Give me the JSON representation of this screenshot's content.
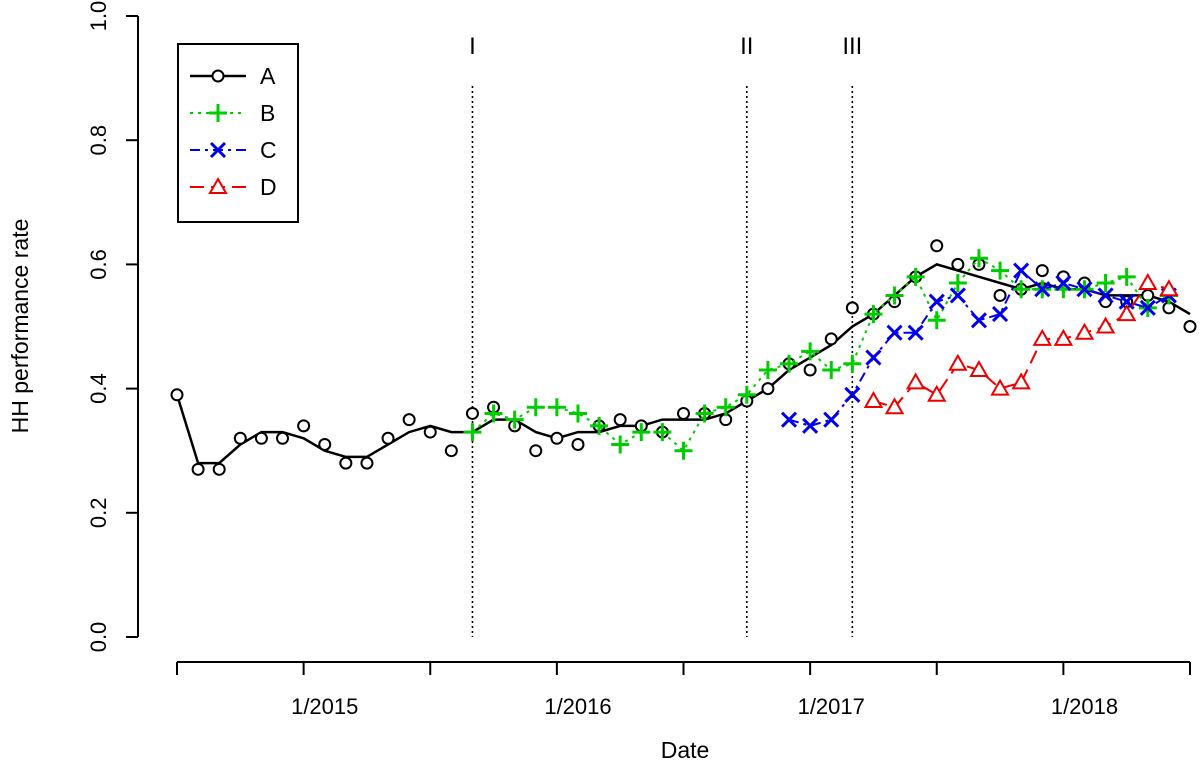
{
  "chart_data": {
    "type": "line",
    "title": "",
    "xlabel": "Date",
    "ylabel": "HH performance rate",
    "ylim": [
      0,
      1
    ],
    "yticks": [
      "0.0",
      "0.2",
      "0.4",
      "0.6",
      "0.8",
      "1.0"
    ],
    "xticks": [
      "1/2015",
      "1/2016",
      "1/2017",
      "1/2018"
    ],
    "xlim": [
      "2014-06",
      "2018-06"
    ],
    "grid": false,
    "legend_position": "top-left",
    "vertical_lines": [
      {
        "label": "I",
        "x": "2015-08"
      },
      {
        "label": "II",
        "x": "2016-09"
      },
      {
        "label": "III",
        "x": "2017-02"
      }
    ],
    "series": [
      {
        "name": "A",
        "color": "#000000",
        "marker": "circle",
        "line": "solid",
        "points": [
          [
            "2014-06",
            0.39
          ],
          [
            "2014-07",
            0.27
          ],
          [
            "2014-08",
            0.27
          ],
          [
            "2014-09",
            0.32
          ],
          [
            "2014-10",
            0.32
          ],
          [
            "2014-11",
            0.32
          ],
          [
            "2014-12",
            0.34
          ],
          [
            "2015-01",
            0.31
          ],
          [
            "2015-02",
            0.28
          ],
          [
            "2015-03",
            0.28
          ],
          [
            "2015-04",
            0.32
          ],
          [
            "2015-05",
            0.35
          ],
          [
            "2015-06",
            0.33
          ],
          [
            "2015-07",
            0.3
          ],
          [
            "2015-08",
            0.36
          ],
          [
            "2015-09",
            0.37
          ],
          [
            "2015-10",
            0.34
          ],
          [
            "2015-11",
            0.3
          ],
          [
            "2015-12",
            0.32
          ],
          [
            "2016-01",
            0.31
          ],
          [
            "2016-02",
            0.34
          ],
          [
            "2016-03",
            0.35
          ],
          [
            "2016-04",
            0.34
          ],
          [
            "2016-05",
            0.33
          ],
          [
            "2016-06",
            0.36
          ],
          [
            "2016-07",
            0.36
          ],
          [
            "2016-08",
            0.35
          ],
          [
            "2016-09",
            0.38
          ],
          [
            "2016-10",
            0.4
          ],
          [
            "2016-11",
            0.44
          ],
          [
            "2016-12",
            0.43
          ],
          [
            "2017-01",
            0.48
          ],
          [
            "2017-02",
            0.53
          ],
          [
            "2017-03",
            0.52
          ],
          [
            "2017-04",
            0.54
          ],
          [
            "2017-05",
            0.58
          ],
          [
            "2017-06",
            0.63
          ],
          [
            "2017-07",
            0.6
          ],
          [
            "2017-08",
            0.6
          ],
          [
            "2017-09",
            0.55
          ],
          [
            "2017-10",
            0.56
          ],
          [
            "2017-11",
            0.59
          ],
          [
            "2017-12",
            0.58
          ],
          [
            "2018-01",
            0.57
          ],
          [
            "2018-02",
            0.54
          ],
          [
            "2018-03",
            0.54
          ],
          [
            "2018-04",
            0.55
          ],
          [
            "2018-05",
            0.53
          ],
          [
            "2018-06",
            0.5
          ]
        ],
        "smooth": [
          [
            "2014-06",
            0.39
          ],
          [
            "2014-07",
            0.28
          ],
          [
            "2014-08",
            0.28
          ],
          [
            "2014-09",
            0.31
          ],
          [
            "2014-10",
            0.33
          ],
          [
            "2014-11",
            0.33
          ],
          [
            "2014-12",
            0.32
          ],
          [
            "2015-01",
            0.3
          ],
          [
            "2015-02",
            0.29
          ],
          [
            "2015-03",
            0.29
          ],
          [
            "2015-04",
            0.31
          ],
          [
            "2015-05",
            0.33
          ],
          [
            "2015-06",
            0.34
          ],
          [
            "2015-07",
            0.33
          ],
          [
            "2015-08",
            0.33
          ],
          [
            "2015-09",
            0.35
          ],
          [
            "2015-10",
            0.35
          ],
          [
            "2015-11",
            0.33
          ],
          [
            "2015-12",
            0.32
          ],
          [
            "2016-01",
            0.33
          ],
          [
            "2016-02",
            0.33
          ],
          [
            "2016-03",
            0.34
          ],
          [
            "2016-04",
            0.34
          ],
          [
            "2016-05",
            0.35
          ],
          [
            "2016-06",
            0.35
          ],
          [
            "2016-07",
            0.35
          ],
          [
            "2016-08",
            0.36
          ],
          [
            "2016-09",
            0.38
          ],
          [
            "2016-10",
            0.4
          ],
          [
            "2016-11",
            0.43
          ],
          [
            "2016-12",
            0.45
          ],
          [
            "2017-01",
            0.47
          ],
          [
            "2017-02",
            0.5
          ],
          [
            "2017-03",
            0.52
          ],
          [
            "2017-04",
            0.55
          ],
          [
            "2017-05",
            0.58
          ],
          [
            "2017-06",
            0.6
          ],
          [
            "2017-07",
            0.59
          ],
          [
            "2017-08",
            0.58
          ],
          [
            "2017-09",
            0.57
          ],
          [
            "2017-10",
            0.56
          ],
          [
            "2017-11",
            0.57
          ],
          [
            "2017-12",
            0.56
          ],
          [
            "2018-01",
            0.56
          ],
          [
            "2018-02",
            0.55
          ],
          [
            "2018-03",
            0.55
          ],
          [
            "2018-04",
            0.55
          ],
          [
            "2018-05",
            0.54
          ],
          [
            "2018-06",
            0.52
          ]
        ]
      },
      {
        "name": "B",
        "color": "#00cc00",
        "marker": "plus",
        "line": "dotted",
        "points": [
          [
            "2015-08",
            0.33
          ],
          [
            "2015-09",
            0.36
          ],
          [
            "2015-10",
            0.35
          ],
          [
            "2015-11",
            0.37
          ],
          [
            "2015-12",
            0.37
          ],
          [
            "2016-01",
            0.36
          ],
          [
            "2016-02",
            0.34
          ],
          [
            "2016-03",
            0.31
          ],
          [
            "2016-04",
            0.33
          ],
          [
            "2016-05",
            0.33
          ],
          [
            "2016-06",
            0.3
          ],
          [
            "2016-07",
            0.36
          ],
          [
            "2016-08",
            0.37
          ],
          [
            "2016-09",
            0.39
          ],
          [
            "2016-10",
            0.43
          ],
          [
            "2016-11",
            0.44
          ],
          [
            "2016-12",
            0.46
          ],
          [
            "2017-01",
            0.43
          ],
          [
            "2017-02",
            0.44
          ],
          [
            "2017-03",
            0.52
          ],
          [
            "2017-04",
            0.55
          ],
          [
            "2017-05",
            0.58
          ],
          [
            "2017-06",
            0.51
          ],
          [
            "2017-07",
            0.57
          ],
          [
            "2017-08",
            0.61
          ],
          [
            "2017-09",
            0.59
          ],
          [
            "2017-10",
            0.56
          ],
          [
            "2017-11",
            0.56
          ],
          [
            "2017-12",
            0.56
          ],
          [
            "2018-01",
            0.56
          ],
          [
            "2018-02",
            0.57
          ],
          [
            "2018-03",
            0.58
          ],
          [
            "2018-04",
            0.53
          ],
          [
            "2018-05",
            0.55
          ]
        ]
      },
      {
        "name": "C",
        "color": "#0000ee",
        "marker": "x",
        "line": "dashdot",
        "points": [
          [
            "2016-11",
            0.35
          ],
          [
            "2016-12",
            0.34
          ],
          [
            "2017-01",
            0.35
          ],
          [
            "2017-02",
            0.39
          ],
          [
            "2017-03",
            0.45
          ],
          [
            "2017-04",
            0.49
          ],
          [
            "2017-05",
            0.49
          ],
          [
            "2017-06",
            0.54
          ],
          [
            "2017-07",
            0.55
          ],
          [
            "2017-08",
            0.51
          ],
          [
            "2017-09",
            0.52
          ],
          [
            "2017-10",
            0.59
          ],
          [
            "2017-11",
            0.56
          ],
          [
            "2017-12",
            0.57
          ],
          [
            "2018-01",
            0.56
          ],
          [
            "2018-02",
            0.55
          ],
          [
            "2018-03",
            0.54
          ],
          [
            "2018-04",
            0.53
          ],
          [
            "2018-05",
            0.55
          ]
        ]
      },
      {
        "name": "D",
        "color": "#ee0000",
        "marker": "triangle",
        "line": "dashed",
        "points": [
          [
            "2017-03",
            0.38
          ],
          [
            "2017-04",
            0.37
          ],
          [
            "2017-05",
            0.41
          ],
          [
            "2017-06",
            0.39
          ],
          [
            "2017-07",
            0.44
          ],
          [
            "2017-08",
            0.43
          ],
          [
            "2017-09",
            0.4
          ],
          [
            "2017-10",
            0.41
          ],
          [
            "2017-11",
            0.48
          ],
          [
            "2017-12",
            0.48
          ],
          [
            "2018-01",
            0.49
          ],
          [
            "2018-02",
            0.5
          ],
          [
            "2018-03",
            0.52
          ],
          [
            "2018-04",
            0.57
          ],
          [
            "2018-05",
            0.56
          ]
        ]
      }
    ]
  }
}
